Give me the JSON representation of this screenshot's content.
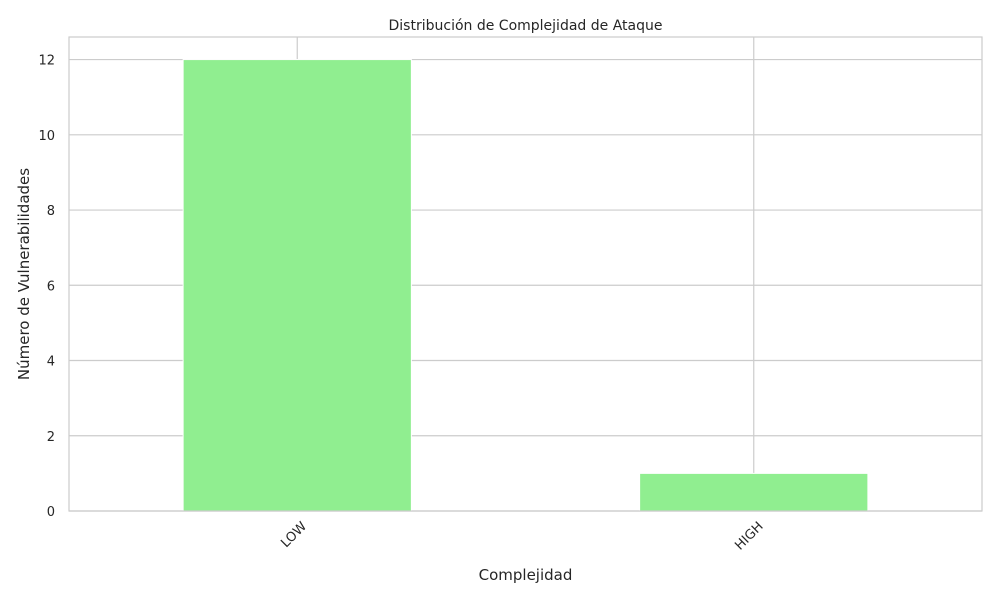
{
  "chart_data": {
    "type": "bar",
    "title": "Distribución de Complejidad de Ataque",
    "xlabel": "Complejidad",
    "ylabel": "Número de Vulnerabilidades",
    "categories": [
      "LOW",
      "HIGH"
    ],
    "values": [
      12,
      1
    ],
    "ylim": [
      0,
      12.6
    ],
    "yticks": [
      0,
      2,
      4,
      6,
      8,
      10,
      12
    ],
    "grid": true,
    "legend": "none",
    "bar_color": "#90EE90",
    "grid_color": "#cccccc",
    "x_tick_rotation_deg": 45
  }
}
